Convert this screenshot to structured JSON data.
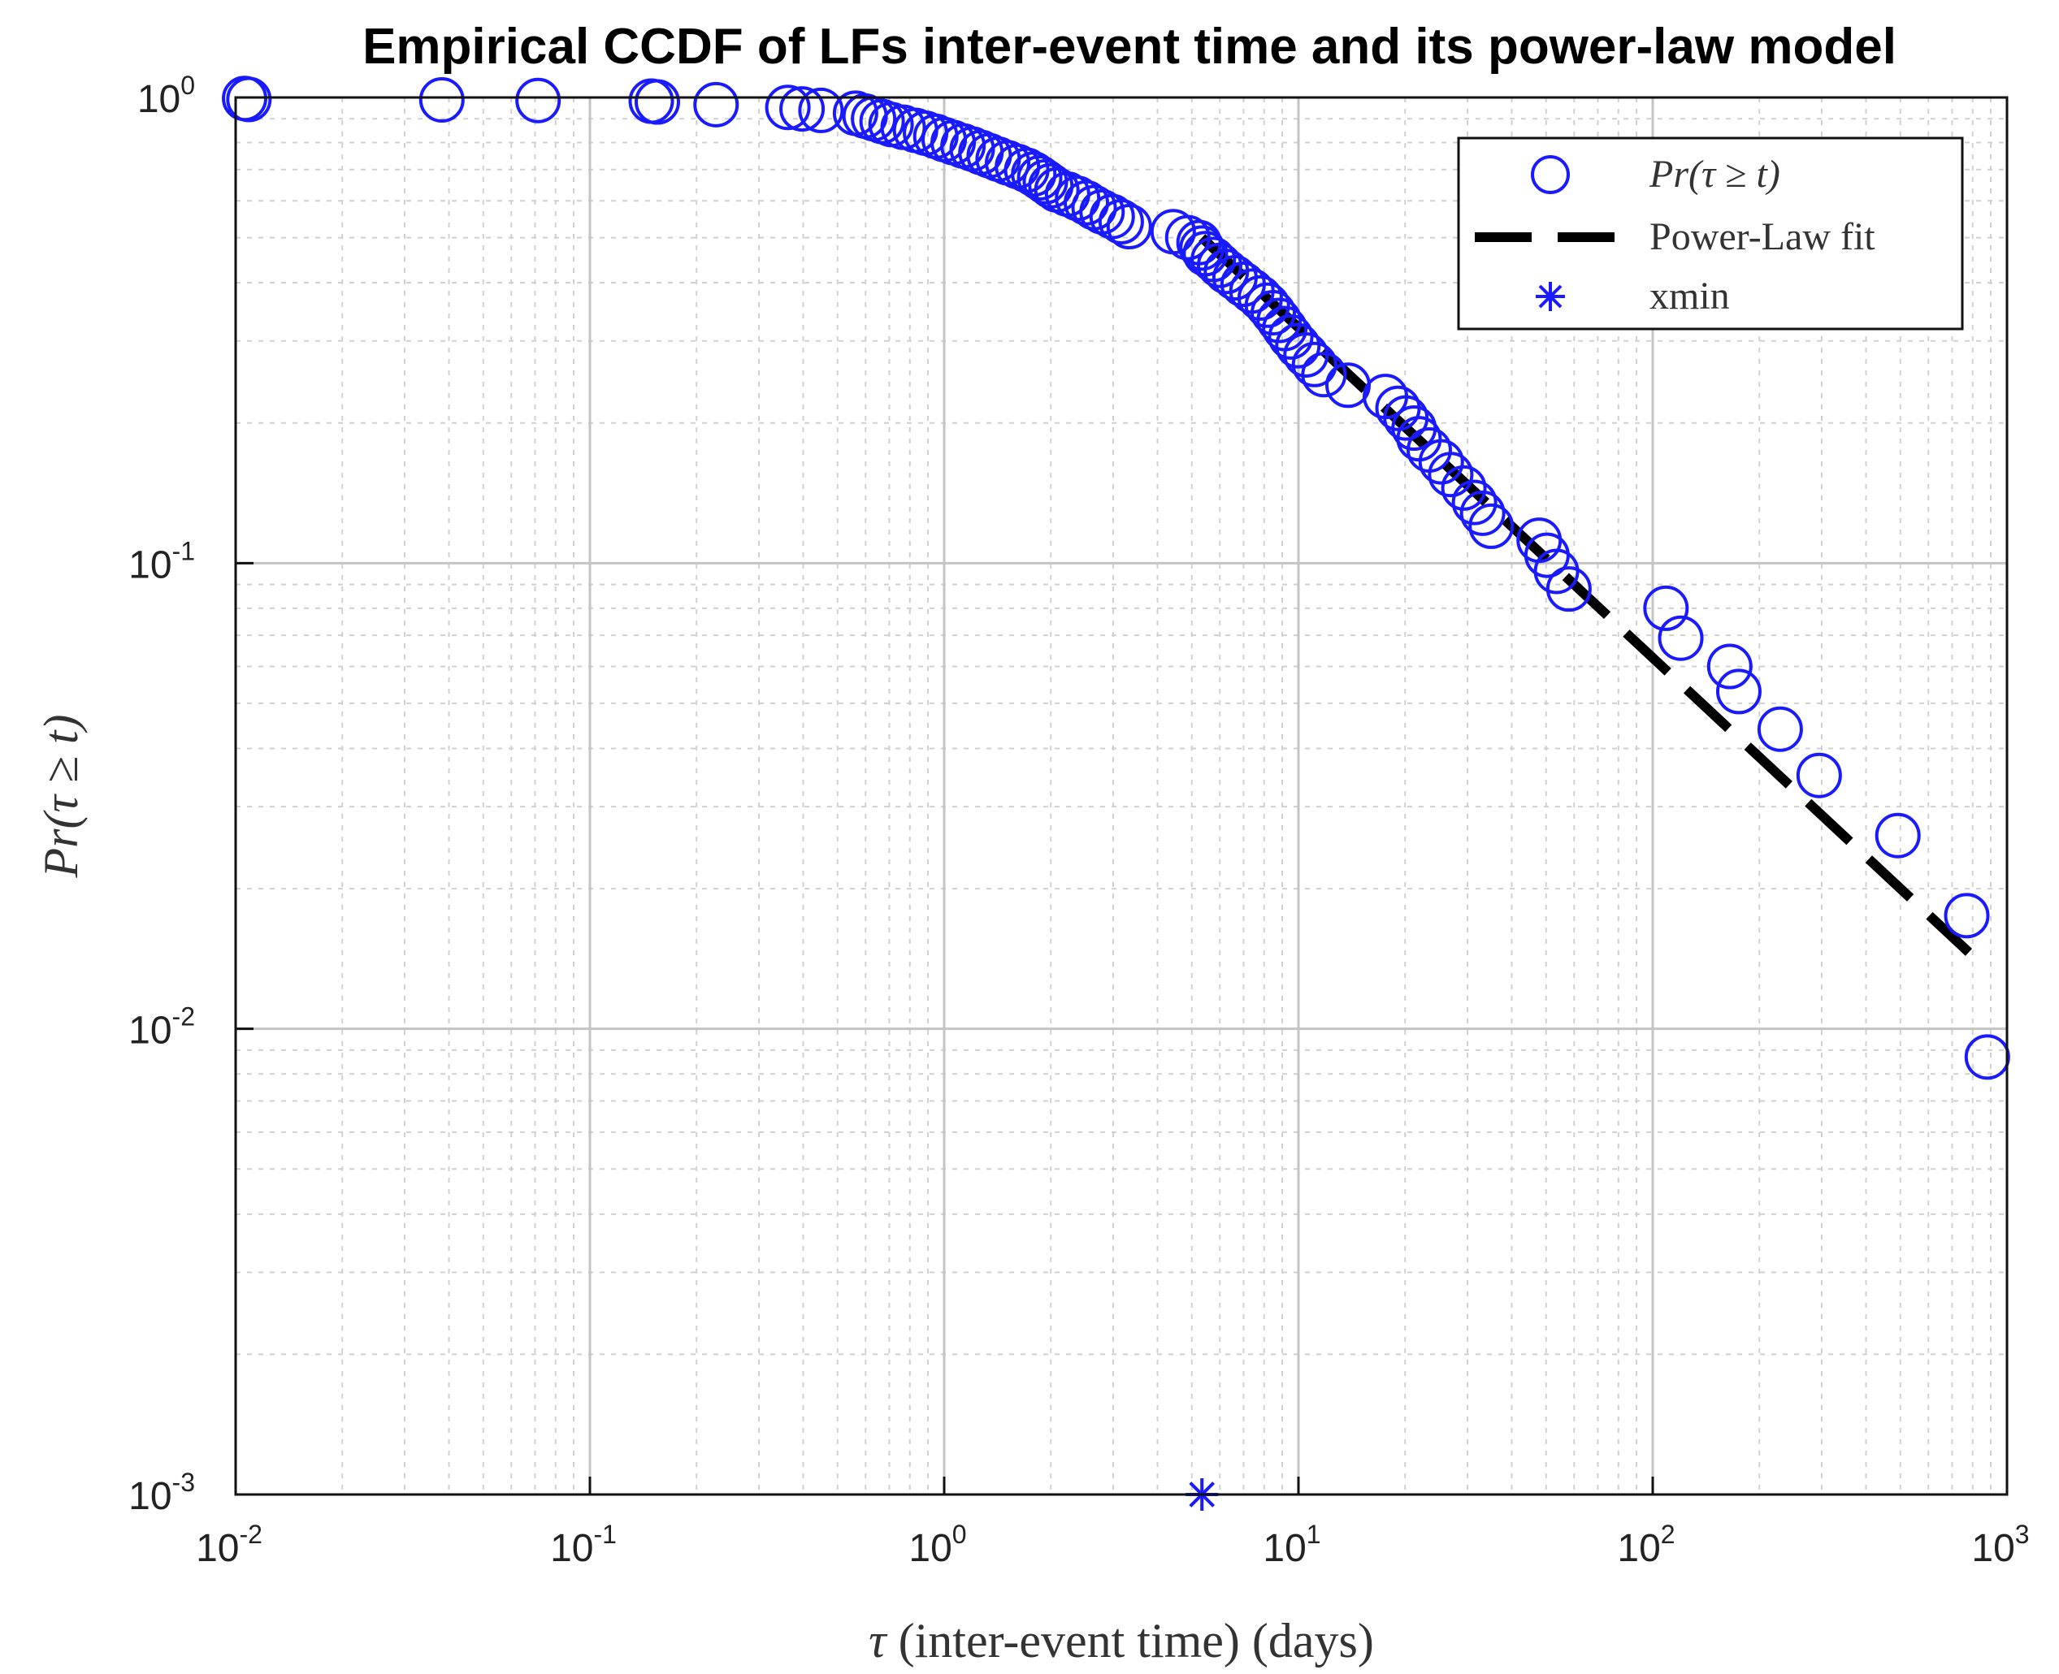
{
  "chart_data": {
    "type": "scatter",
    "title": "Empirical CCDF of LFs inter-event time and its power-law model",
    "xlabel_symbol": "τ",
    "xlabel": " (inter-event time) (days)",
    "ylabel": "Pr(τ ≥ t)",
    "xscale": "log",
    "yscale": "log",
    "xlim": [
      0.01,
      1000
    ],
    "ylim": [
      0.001,
      1
    ],
    "grid": true,
    "legend_position": "top-right",
    "x_ticks": [
      {
        "value": 0.01,
        "base": "10",
        "exp": "-2"
      },
      {
        "value": 0.1,
        "base": "10",
        "exp": "-1"
      },
      {
        "value": 1,
        "base": "10",
        "exp": "0"
      },
      {
        "value": 10,
        "base": "10",
        "exp": "1"
      },
      {
        "value": 100,
        "base": "10",
        "exp": "2"
      },
      {
        "value": 1000,
        "base": "10",
        "exp": "3"
      }
    ],
    "y_ticks": [
      {
        "value": 0.001,
        "base": "10",
        "exp": "-3"
      },
      {
        "value": 0.01,
        "base": "10",
        "exp": "-2"
      },
      {
        "value": 0.1,
        "base": "10",
        "exp": "-1"
      },
      {
        "value": 1,
        "base": "10",
        "exp": "0"
      }
    ],
    "series": [
      {
        "name": "Pr(τ ≥ t)",
        "marker": "circle",
        "color": "#1a1aff",
        "points": [
          [
            0.0106,
            0.995
          ],
          [
            0.0109,
            0.99
          ],
          [
            0.0382,
            0.988
          ],
          [
            0.0714,
            0.985
          ],
          [
            0.149,
            0.982
          ],
          [
            0.155,
            0.978
          ],
          [
            0.227,
            0.965
          ],
          [
            0.362,
            0.952
          ],
          [
            0.397,
            0.945
          ],
          [
            0.449,
            0.938
          ],
          [
            0.562,
            0.925
          ],
          [
            0.598,
            0.912
          ],
          [
            0.632,
            0.9
          ],
          [
            0.668,
            0.888
          ],
          [
            0.708,
            0.875
          ],
          [
            0.766,
            0.863
          ],
          [
            0.83,
            0.85
          ],
          [
            0.886,
            0.838
          ],
          [
            0.947,
            0.825
          ],
          [
            1.0,
            0.812
          ],
          [
            1.06,
            0.8
          ],
          [
            1.13,
            0.787
          ],
          [
            1.2,
            0.775
          ],
          [
            1.27,
            0.762
          ],
          [
            1.34,
            0.75
          ],
          [
            1.42,
            0.737
          ],
          [
            1.51,
            0.724
          ],
          [
            1.61,
            0.711
          ],
          [
            1.71,
            0.698
          ],
          [
            1.79,
            0.685
          ],
          [
            1.86,
            0.672
          ],
          [
            1.93,
            0.659
          ],
          [
            2.0,
            0.646
          ],
          [
            2.08,
            0.633
          ],
          [
            2.23,
            0.62
          ],
          [
            2.38,
            0.607
          ],
          [
            2.52,
            0.594
          ],
          [
            2.65,
            0.58
          ],
          [
            2.79,
            0.568
          ],
          [
            2.98,
            0.555
          ],
          [
            3.16,
            0.541
          ],
          [
            3.33,
            0.528
          ],
          [
            4.43,
            0.515
          ],
          [
            4.87,
            0.5
          ],
          [
            5.24,
            0.488
          ],
          [
            5.34,
            0.475
          ],
          [
            5.46,
            0.462
          ],
          [
            5.75,
            0.449
          ],
          [
            5.99,
            0.436
          ],
          [
            6.26,
            0.423
          ],
          [
            6.62,
            0.41
          ],
          [
            6.98,
            0.397
          ],
          [
            7.39,
            0.384
          ],
          [
            7.8,
            0.371
          ],
          [
            8.17,
            0.358
          ],
          [
            8.49,
            0.345
          ],
          [
            8.82,
            0.332
          ],
          [
            9.15,
            0.319
          ],
          [
            9.51,
            0.306
          ],
          [
            9.96,
            0.293
          ],
          [
            10.5,
            0.28
          ],
          [
            11.1,
            0.267
          ],
          [
            11.8,
            0.254
          ],
          [
            13.8,
            0.241
          ],
          [
            17.6,
            0.228
          ],
          [
            19.1,
            0.215
          ],
          [
            20.1,
            0.205
          ],
          [
            21.2,
            0.195
          ],
          [
            21.9,
            0.185
          ],
          [
            23.4,
            0.175
          ],
          [
            25.3,
            0.165
          ],
          [
            26.9,
            0.155
          ],
          [
            29.3,
            0.145
          ],
          [
            31.4,
            0.135
          ],
          [
            33.1,
            0.128
          ],
          [
            35.0,
            0.12
          ],
          [
            47.8,
            0.112
          ],
          [
            50.3,
            0.104
          ],
          [
            53.5,
            0.096
          ],
          [
            58.0,
            0.088
          ],
          [
            109,
            0.08
          ],
          [
            120,
            0.069
          ],
          [
            165,
            0.06
          ],
          [
            175,
            0.053
          ],
          [
            229,
            0.044
          ],
          [
            295,
            0.035
          ],
          [
            492,
            0.026
          ],
          [
            770,
            0.0175
          ],
          [
            880,
            0.0087
          ]
        ]
      },
      {
        "name": "Power-Law fit",
        "line": "dashed",
        "color": "#000000",
        "points": [
          [
            5.34,
            0.5
          ],
          [
            780,
            0.0146
          ]
        ]
      },
      {
        "name": "xmin",
        "marker": "asterisk",
        "color": "#1a1aff",
        "points": [
          [
            5.34,
            0.001
          ]
        ]
      }
    ]
  }
}
